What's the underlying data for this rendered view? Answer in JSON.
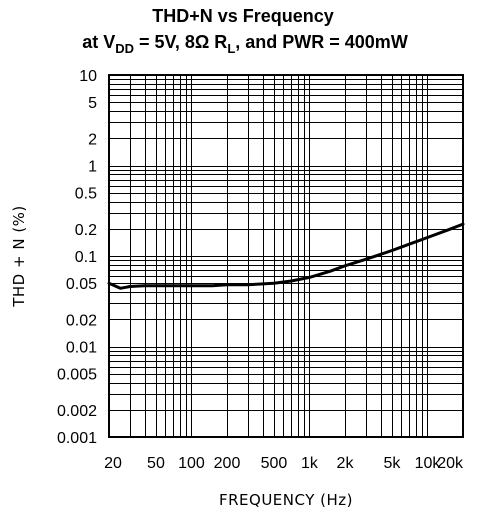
{
  "chart_data": {
    "type": "line",
    "title_line1": "THD+N vs Frequency",
    "title_line2": {
      "p1": "at V",
      "p1_sub": "DD",
      "p2": " = 5V, 8Ω R",
      "p2_sub": "L",
      "p3": ", and PWR = 400mW"
    },
    "xlabel": "FREQUENCY (Hz)",
    "ylabel": "THD + N (%)",
    "x_scale": "log",
    "y_scale": "log",
    "xlim": [
      20,
      20000
    ],
    "ylim": [
      0.001,
      10
    ],
    "grid": true,
    "x_ticks": [
      {
        "value": 20,
        "label": "20"
      },
      {
        "value": 50,
        "label": "50"
      },
      {
        "value": 100,
        "label": "100"
      },
      {
        "value": 200,
        "label": "200"
      },
      {
        "value": 500,
        "label": "500"
      },
      {
        "value": 1000,
        "label": "1k"
      },
      {
        "value": 2000,
        "label": "2k"
      },
      {
        "value": 5000,
        "label": "5k"
      },
      {
        "value": 10000,
        "label": "10k"
      },
      {
        "value": 20000,
        "label": "20k"
      }
    ],
    "y_ticks": [
      {
        "value": 10,
        "label": "10"
      },
      {
        "value": 5,
        "label": "5"
      },
      {
        "value": 2,
        "label": "2"
      },
      {
        "value": 1,
        "label": "1"
      },
      {
        "value": 0.5,
        "label": "0.5"
      },
      {
        "value": 0.2,
        "label": "0.2"
      },
      {
        "value": 0.1,
        "label": "0.1"
      },
      {
        "value": 0.05,
        "label": "0.05"
      },
      {
        "value": 0.02,
        "label": "0.02"
      },
      {
        "value": 0.01,
        "label": "0.01"
      },
      {
        "value": 0.005,
        "label": "0.005"
      },
      {
        "value": 0.002,
        "label": "0.002"
      },
      {
        "value": 0.001,
        "label": "0.001"
      }
    ],
    "series": [
      {
        "x": [
          20,
          25,
          30,
          40,
          50,
          70,
          100,
          150,
          200,
          300,
          500,
          700,
          1000,
          1500,
          2000,
          3000,
          5000,
          7000,
          10000,
          15000,
          20000
        ],
        "y": [
          0.05,
          0.044,
          0.046,
          0.047,
          0.047,
          0.047,
          0.047,
          0.047,
          0.048,
          0.048,
          0.05,
          0.053,
          0.058,
          0.068,
          0.078,
          0.092,
          0.115,
          0.135,
          0.16,
          0.195,
          0.225
        ]
      }
    ]
  }
}
